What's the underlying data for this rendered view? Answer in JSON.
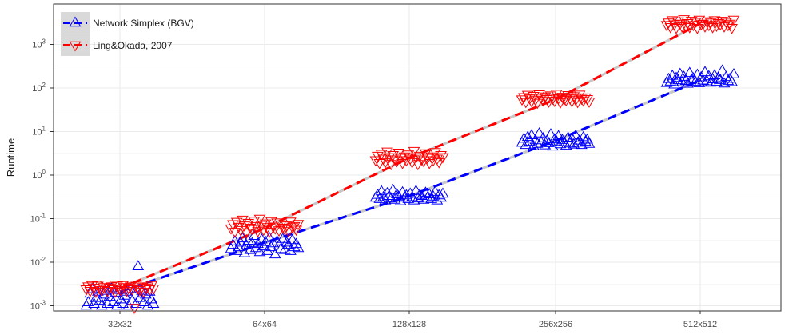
{
  "chart_data": {
    "type": "scatter",
    "title": "",
    "xlabel": "",
    "ylabel": "Runtime",
    "y_scale": "log10",
    "categories": [
      "32x32",
      "64x64",
      "128x128",
      "256x256",
      "512x512"
    ],
    "y_ticks": [
      {
        "base": "10",
        "exp": "-3",
        "value": 0.001
      },
      {
        "base": "10",
        "exp": "-2",
        "value": 0.01
      },
      {
        "base": "10",
        "exp": "-1",
        "value": 0.1
      },
      {
        "base": "10",
        "exp": "0",
        "value": 1
      },
      {
        "base": "10",
        "exp": "1",
        "value": 10
      },
      {
        "base": "10",
        "exp": "2",
        "value": 100
      },
      {
        "base": "10",
        "exp": "3",
        "value": 1000
      }
    ],
    "ylim": [
      0.0006,
      9000
    ],
    "grid": true,
    "legend_position": "top-left",
    "series": [
      {
        "name": "Network Simplex (BGV)",
        "color": "#0000ff",
        "marker": "triangle-up",
        "trend": [
          0.0021,
          0.028,
          0.33,
          6.2,
          150
        ],
        "values": [
          [
            0.001,
            0.0012,
            0.0019,
            0.0024,
            0.0011,
            0.0015,
            0.0021,
            0.0013,
            0.001,
            0.0018,
            0.0022,
            0.0011,
            0.0016,
            0.0025,
            0.0012,
            0.002,
            0.001,
            0.0023,
            0.0014,
            0.0011,
            0.0017,
            0.0021,
            0.001,
            0.0024,
            0.0013,
            0.0019,
            0.0011,
            0.008,
            0.0015,
            0.0022,
            0.0012,
            0.0018,
            0.001,
            0.0021,
            0.0014,
            0.0011
          ],
          [
            0.02,
            0.025,
            0.03,
            0.018,
            0.022,
            0.028,
            0.035,
            0.016,
            0.024,
            0.031,
            0.019,
            0.027,
            0.04,
            0.021,
            0.026,
            0.017,
            0.033,
            0.023,
            0.029,
            0.018,
            0.036,
            0.022,
            0.027,
            0.015,
            0.03,
            0.024,
            0.02,
            0.034,
            0.019,
            0.028,
            0.025,
            0.018,
            0.032,
            0.022,
            0.026,
            0.021
          ],
          [
            0.3,
            0.35,
            0.28,
            0.42,
            0.31,
            0.26,
            0.38,
            0.33,
            0.29,
            0.45,
            0.27,
            0.36,
            0.32,
            0.25,
            0.4,
            0.3,
            0.34,
            0.28,
            0.37,
            0.31,
            0.26,
            0.43,
            0.29,
            0.35,
            0.33,
            0.27,
            0.39,
            0.3,
            0.36,
            0.28,
            0.32,
            0.41,
            0.26,
            0.34,
            0.3,
            0.37
          ],
          [
            5.5,
            6.8,
            4.9,
            7.5,
            5.8,
            8.2,
            4.6,
            6.3,
            5.2,
            9.0,
            5.6,
            7.0,
            4.8,
            6.1,
            5.4,
            8.6,
            4.5,
            6.6,
            5.9,
            7.8,
            5.1,
            6.4,
            5.7,
            4.7,
            7.2,
            5.3,
            6.9,
            5.0,
            8.0,
            5.5,
            6.2,
            4.9,
            7.4,
            5.8,
            6.5,
            5.2
          ],
          [
            130,
            160,
            140,
            190,
            120,
            170,
            150,
            210,
            135,
            180,
            145,
            125,
            220,
            155,
            165,
            138,
            200,
            128,
            175,
            148,
            230,
            142,
            185,
            132,
            158,
            195,
            138,
            168,
            152,
            250,
            126,
            178,
            144,
            162,
            136,
            205
          ]
        ]
      },
      {
        "name": "Ling&Okada, 2007",
        "color": "#ff0000",
        "marker": "triangle-down",
        "trend": [
          0.0025,
          0.06,
          2.5,
          55,
          3000
        ],
        "values": [
          [
            0.0024,
            0.0028,
            0.0022,
            0.003,
            0.0026,
            0.0021,
            0.0029,
            0.0025,
            0.0023,
            0.0027,
            0.0031,
            0.0022,
            0.0026,
            0.0028,
            0.0024,
            0.0021,
            0.0029,
            0.0025,
            0.0023,
            0.003,
            0.0027,
            0.0022,
            0.0026,
            0.0028,
            0.0024,
            0.0009,
            0.0029,
            0.0025,
            0.0023,
            0.0027,
            0.0021,
            0.0026,
            0.0028,
            0.0024,
            0.003,
            0.0025
          ],
          [
            0.06,
            0.075,
            0.05,
            0.085,
            0.065,
            0.055,
            0.095,
            0.07,
            0.048,
            0.08,
            0.062,
            0.058,
            0.09,
            0.068,
            0.052,
            0.1,
            0.072,
            0.056,
            0.078,
            0.064,
            0.05,
            0.088,
            0.066,
            0.06,
            0.082,
            0.054,
            0.074,
            0.062,
            0.058,
            0.07,
            0.052,
            0.086,
            0.064,
            0.068,
            0.056,
            0.076
          ],
          [
            2.2,
            2.8,
            1.9,
            3.1,
            2.4,
            2.0,
            3.5,
            2.6,
            1.8,
            2.9,
            2.3,
            2.1,
            3.3,
            2.5,
            1.9,
            2.7,
            2.2,
            3.0,
            2.4,
            2.0,
            3.6,
            2.6,
            1.8,
            2.8,
            2.3,
            2.1,
            3.2,
            2.5,
            1.9,
            2.7,
            2.2,
            3.4,
            2.4,
            2.0,
            2.9,
            2.6
          ],
          [
            55,
            62,
            48,
            70,
            58,
            50,
            66,
            54,
            46,
            72,
            60,
            52,
            64,
            56,
            49,
            68,
            57,
            51,
            74,
            59,
            47,
            63,
            55,
            53,
            69,
            58,
            50,
            65,
            54,
            48,
            71,
            57,
            52,
            61,
            56,
            49
          ],
          [
            2800,
            3200,
            2500,
            3600,
            2900,
            2400,
            3400,
            3000,
            2600,
            3800,
            2700,
            3100,
            2500,
            3500,
            2800,
            3300,
            2400,
            3700,
            2900,
            3000,
            2600,
            3400,
            2800,
            3200,
            2500,
            3600,
            2700,
            3100,
            2900,
            3500,
            2600,
            3300,
            2800,
            3000,
            2400,
            3700
          ]
        ]
      }
    ]
  }
}
